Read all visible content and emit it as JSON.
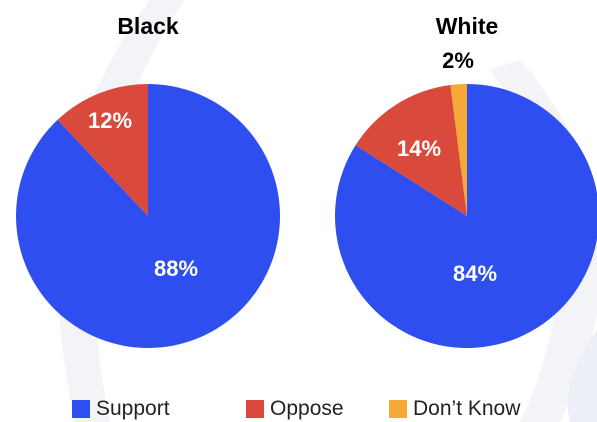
{
  "chart_data": [
    {
      "type": "pie",
      "title": "Black",
      "categories": [
        "Support",
        "Oppose"
      ],
      "values": [
        88,
        12
      ],
      "labels": [
        "88%",
        "12%"
      ],
      "colors": [
        "#2f4ef0",
        "#d94a3d"
      ],
      "start": "12 o'clock",
      "direction": "clockwise"
    },
    {
      "type": "pie",
      "title": "White",
      "categories": [
        "Support",
        "Oppose",
        "Don't Know"
      ],
      "values": [
        84,
        14,
        2
      ],
      "labels": [
        "84%",
        "14%",
        "2%"
      ],
      "colors": [
        "#2f4ef0",
        "#d94a3d",
        "#f5a936"
      ],
      "start": "12 o'clock",
      "direction": "clockwise"
    }
  ],
  "legend": {
    "placement": "bottom",
    "items": [
      {
        "label": "Support",
        "color": "#2f4ef0"
      },
      {
        "label": "Oppose",
        "color": "#d94a3d"
      },
      {
        "label": "Don’t Know",
        "color": "#f5a936"
      }
    ]
  }
}
